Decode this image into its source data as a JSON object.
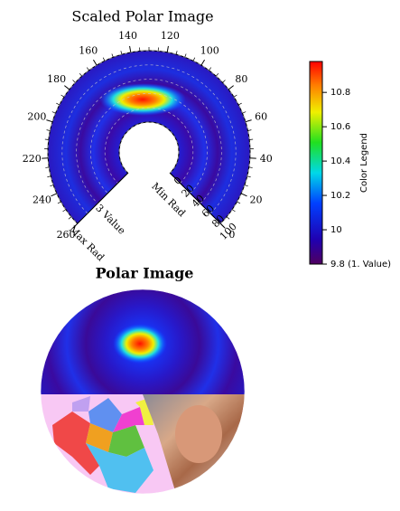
{
  "top_panel": {
    "title": "Scaled Polar Image",
    "angle_lim": [
      0,
      260
    ],
    "angle_ticks": [
      0,
      20,
      40,
      60,
      80,
      100,
      120,
      140,
      160,
      180,
      200,
      220,
      240,
      260
    ],
    "radial_lim": [
      0,
      100
    ],
    "radial_ticks": [
      0,
      20,
      40,
      60,
      80,
      100
    ],
    "radial_axis_label": "Min Rad",
    "value_axis_labels": [
      "3 Value",
      "Max Rad"
    ]
  },
  "bottom_panel": {
    "title": "Polar Image"
  },
  "color_legend": {
    "label": "Color Legend",
    "lim": [
      9.8,
      10.98
    ],
    "ticks": [
      {
        "value": 9.8,
        "label": "9.8 (1. Value)"
      },
      10,
      10.2,
      10.4,
      10.6,
      10.8
    ]
  }
}
